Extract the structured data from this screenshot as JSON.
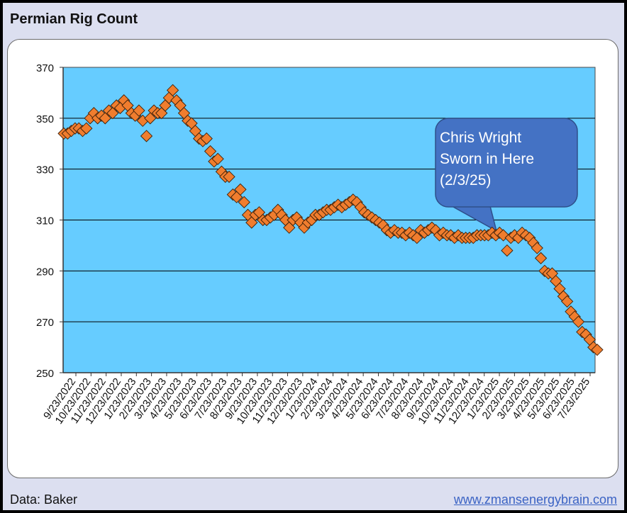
{
  "title": "Permian Rig Count",
  "source": "Data: Baker",
  "website": "www.zmansenergybrain.com",
  "annotation": {
    "lines": [
      "Chris Wright",
      "Sworn in Here",
      "(2/3/25)"
    ],
    "color": "#4472c4"
  },
  "colors": {
    "plot_bg": "#66ccff",
    "marker_fill": "#f07d2e",
    "marker_edge": "#3d1f08",
    "grid": "#000000"
  },
  "chart_data": {
    "type": "scatter",
    "title": "Permian Rig Count",
    "xlabel": "",
    "ylabel": "",
    "ylim": [
      250,
      370
    ],
    "yticks": [
      250,
      270,
      290,
      310,
      330,
      350,
      370
    ],
    "grid": "horizontal",
    "legend": "none",
    "x_tick_labels": [
      "9/23/2022",
      "10/23/2022",
      "11/23/2022",
      "12/23/2022",
      "1/23/2023",
      "2/23/2023",
      "3/23/2023",
      "4/23/2023",
      "5/23/2023",
      "6/23/2023",
      "7/23/2023",
      "8/23/2023",
      "9/23/2023",
      "10/23/2023",
      "11/23/2023",
      "12/23/2023",
      "1/23/2024",
      "2/23/2024",
      "3/23/2024",
      "4/23/2024",
      "5/23/2024",
      "6/23/2024",
      "7/23/2024",
      "8/23/2024",
      "9/23/2024",
      "10/23/2024",
      "11/23/2024",
      "12/23/2024",
      "1/23/2025",
      "2/23/2025",
      "3/23/2025",
      "4/23/2025",
      "5/23/2025",
      "6/23/2025",
      "7/23/2025"
    ],
    "values": [
      344,
      344,
      345,
      346,
      346,
      345,
      346,
      350,
      352,
      350,
      351,
      350,
      353,
      352,
      355,
      354,
      357,
      355,
      352,
      351,
      353,
      349,
      343,
      350,
      353,
      352,
      352,
      355,
      358,
      361,
      357,
      355,
      352,
      349,
      348,
      345,
      342,
      341,
      342,
      337,
      333,
      334,
      329,
      327,
      327,
      320,
      319,
      322,
      317,
      312,
      309,
      312,
      313,
      310,
      310,
      311,
      312,
      314,
      312,
      310,
      307,
      310,
      311,
      309,
      307,
      309,
      310,
      312,
      312,
      313,
      314,
      314,
      315,
      316,
      315,
      316,
      317,
      318,
      317,
      315,
      313,
      312,
      311,
      310,
      309,
      308,
      306,
      305,
      306,
      305,
      305,
      304,
      305,
      304,
      303,
      306,
      305,
      306,
      307,
      306,
      304,
      305,
      304,
      304,
      303,
      304,
      303,
      303,
      303,
      303,
      304,
      304,
      304,
      304,
      305,
      304,
      305,
      304,
      298,
      303,
      304,
      303,
      305,
      304,
      303,
      301,
      299,
      295,
      290,
      289,
      289,
      286,
      283,
      280,
      278,
      274,
      272,
      270,
      266,
      265,
      263,
      260,
      259
    ]
  }
}
